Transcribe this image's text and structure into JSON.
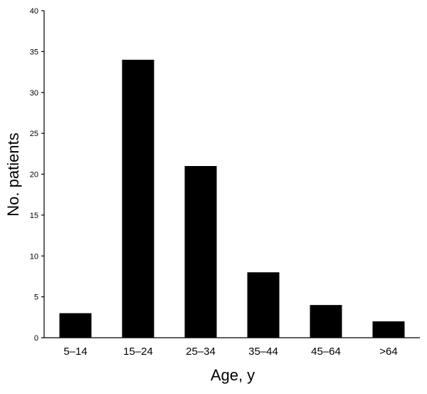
{
  "chart_data": {
    "type": "bar",
    "categories": [
      "5–14",
      "15–24",
      "25–34",
      "35–44",
      "45–64",
      ">64"
    ],
    "values": [
      3,
      34,
      21,
      8,
      4,
      2
    ],
    "title": "",
    "xlabel": "Age, y",
    "ylabel": "No. patients",
    "ylim": [
      0,
      40
    ],
    "yticks": [
      0,
      5,
      10,
      15,
      20,
      25,
      30,
      35,
      40
    ],
    "bar_color": "#000000",
    "grid": false,
    "legend": "none"
  }
}
